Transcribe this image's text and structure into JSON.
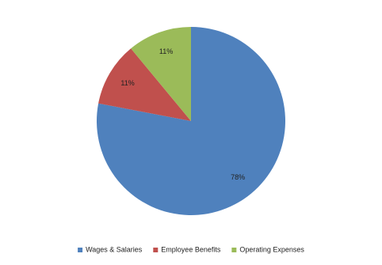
{
  "chart_data": {
    "type": "pie",
    "categories": [
      "Wages & Salaries",
      "Employee Benefits",
      "Operating Expenses"
    ],
    "values": [
      78,
      11,
      11
    ],
    "value_labels": [
      "78%",
      "11%",
      "11%"
    ],
    "colors": [
      "#4f81bd",
      "#c0504d",
      "#9bbb59"
    ],
    "legend": "bottom"
  }
}
